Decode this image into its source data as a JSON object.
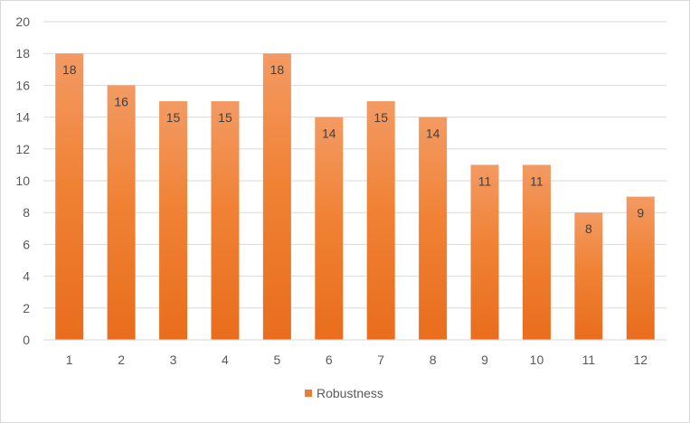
{
  "chart_data": {
    "type": "bar",
    "categories": [
      "1",
      "2",
      "3",
      "4",
      "5",
      "6",
      "7",
      "8",
      "9",
      "10",
      "11",
      "12"
    ],
    "series": [
      {
        "name": "Robustness",
        "values": [
          18,
          16,
          15,
          15,
          18,
          14,
          15,
          14,
          11,
          11,
          8,
          9
        ],
        "color": "#ed7d31"
      }
    ],
    "title": "",
    "xlabel": "",
    "ylabel": "",
    "ylim": [
      0,
      20
    ],
    "yticks": [
      0,
      2,
      4,
      6,
      8,
      10,
      12,
      14,
      16,
      18,
      20
    ],
    "grid": true,
    "legend_position": "bottom",
    "data_labels": "inside-end"
  }
}
